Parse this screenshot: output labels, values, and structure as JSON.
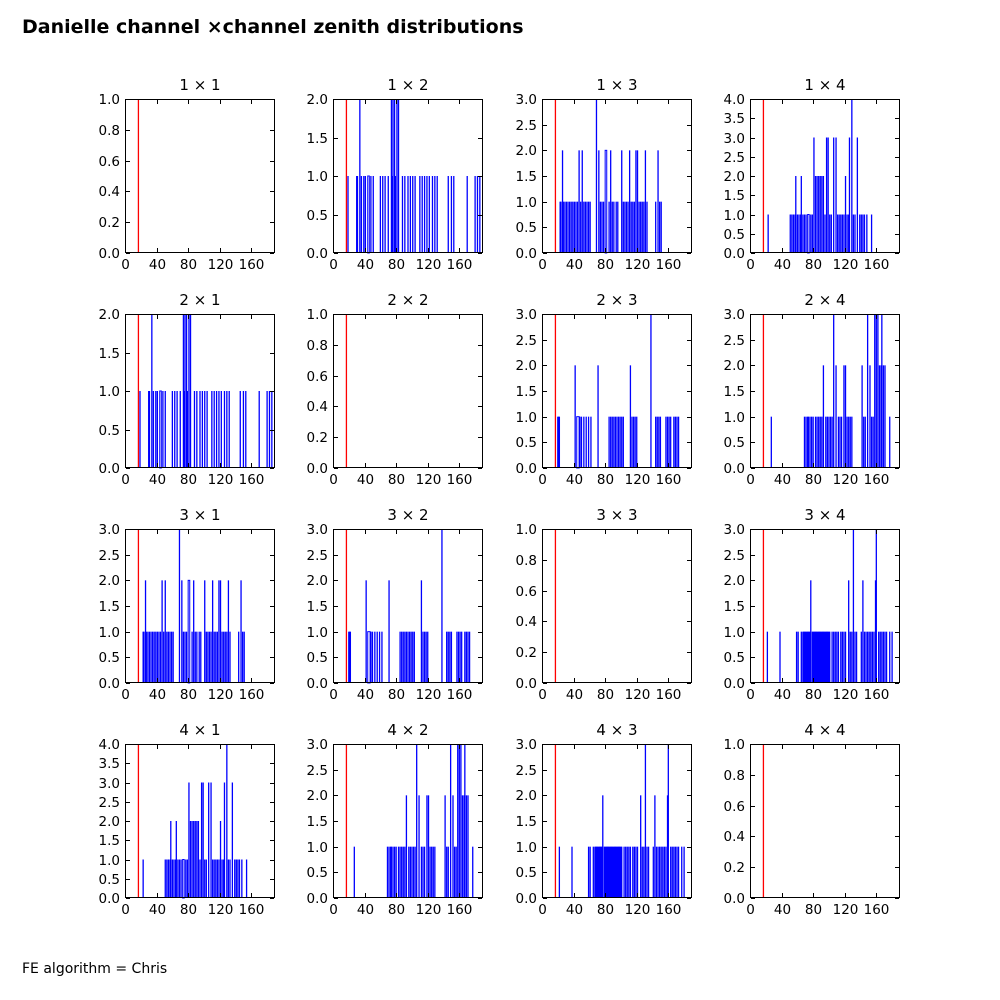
{
  "title": "Danielle channel ×channel zenith distributions",
  "footer": "FE algorithm = Chris",
  "colors": {
    "histogram": "#0000ff",
    "threshold_line": "#ff0000",
    "axis": "#000000",
    "background": "#ffffff",
    "text": "#000000"
  },
  "chart_data": {
    "type": "bar",
    "layout": "4x4-grid",
    "grid": false,
    "legend": false,
    "xlim": [
      0,
      190
    ],
    "xticks": [
      0,
      40,
      80,
      120,
      160
    ],
    "red_line_x": 17,
    "histograms": {
      "empty": [],
      "h12": [
        [
          19,
          1
        ],
        [
          30,
          1
        ],
        [
          31,
          1
        ],
        [
          34,
          2
        ],
        [
          36,
          1
        ],
        [
          39,
          1
        ],
        [
          41,
          1
        ],
        [
          44,
          1,
          2
        ],
        [
          48,
          1
        ],
        [
          51,
          1
        ],
        [
          60,
          1
        ],
        [
          63,
          1
        ],
        [
          66,
          1
        ],
        [
          70,
          1
        ],
        [
          74,
          2
        ],
        [
          75,
          1
        ],
        [
          76,
          2
        ],
        [
          78,
          2
        ],
        [
          79,
          1
        ],
        [
          81,
          2
        ],
        [
          83,
          2
        ],
        [
          88,
          1
        ],
        [
          91,
          1
        ],
        [
          95,
          1
        ],
        [
          98,
          1
        ],
        [
          101,
          1
        ],
        [
          104,
          1
        ],
        [
          110,
          1
        ],
        [
          113,
          1
        ],
        [
          116,
          1
        ],
        [
          119,
          1
        ],
        [
          122,
          1
        ],
        [
          126,
          1
        ],
        [
          129,
          1
        ],
        [
          132,
          1
        ],
        [
          146,
          1
        ],
        [
          150,
          1
        ],
        [
          153,
          1
        ],
        [
          170,
          1
        ],
        [
          180,
          1
        ],
        [
          183,
          1
        ],
        [
          186,
          1
        ]
      ],
      "h13": [
        [
          23,
          1
        ],
        [
          24,
          1
        ],
        [
          26,
          2
        ],
        [
          27,
          1
        ],
        [
          29,
          1
        ],
        [
          31,
          1
        ],
        [
          33,
          1
        ],
        [
          35,
          1
        ],
        [
          37,
          1
        ],
        [
          39,
          1
        ],
        [
          41,
          1
        ],
        [
          43,
          1
        ],
        [
          45,
          1
        ],
        [
          47,
          2
        ],
        [
          49,
          1
        ],
        [
          51,
          2
        ],
        [
          53,
          1
        ],
        [
          55,
          1
        ],
        [
          57,
          1
        ],
        [
          59,
          1
        ],
        [
          61,
          1
        ],
        [
          69,
          3
        ],
        [
          72,
          2
        ],
        [
          74,
          1
        ],
        [
          76,
          1
        ],
        [
          78,
          1
        ],
        [
          80,
          2,
          2
        ],
        [
          85,
          1
        ],
        [
          87,
          2
        ],
        [
          89,
          1
        ],
        [
          91,
          1
        ],
        [
          94,
          1
        ],
        [
          96,
          1
        ],
        [
          101,
          2
        ],
        [
          103,
          1
        ],
        [
          105,
          1
        ],
        [
          107,
          1
        ],
        [
          109,
          1
        ],
        [
          111,
          2
        ],
        [
          113,
          1
        ],
        [
          115,
          1
        ],
        [
          117,
          1
        ],
        [
          119,
          2
        ],
        [
          121,
          2
        ],
        [
          123,
          1
        ],
        [
          125,
          1
        ],
        [
          127,
          1
        ],
        [
          129,
          1
        ],
        [
          131,
          2
        ],
        [
          133,
          1
        ],
        [
          144,
          1
        ],
        [
          147,
          2
        ],
        [
          149,
          1
        ],
        [
          151,
          1
        ]
      ],
      "h14": [
        [
          23,
          1
        ],
        [
          51,
          1
        ],
        [
          53,
          1
        ],
        [
          55,
          1
        ],
        [
          57,
          1
        ],
        [
          58,
          2
        ],
        [
          60,
          1
        ],
        [
          62,
          1
        ],
        [
          64,
          1
        ],
        [
          65,
          2
        ],
        [
          67,
          1
        ],
        [
          69,
          1
        ],
        [
          71,
          1
        ],
        [
          73,
          1,
          2
        ],
        [
          77,
          1
        ],
        [
          79,
          1
        ],
        [
          81,
          3
        ],
        [
          83,
          2
        ],
        [
          85,
          2
        ],
        [
          87,
          2
        ],
        [
          89,
          2
        ],
        [
          91,
          2
        ],
        [
          93,
          2
        ],
        [
          95,
          1
        ],
        [
          97,
          3
        ],
        [
          99,
          3
        ],
        [
          101,
          1
        ],
        [
          103,
          1
        ],
        [
          106,
          3
        ],
        [
          109,
          3
        ],
        [
          111,
          1
        ],
        [
          113,
          1
        ],
        [
          115,
          1
        ],
        [
          117,
          1
        ],
        [
          119,
          1
        ],
        [
          121,
          2
        ],
        [
          123,
          1
        ],
        [
          125,
          1
        ],
        [
          126,
          3
        ],
        [
          129,
          4
        ],
        [
          131,
          1
        ],
        [
          133,
          1
        ],
        [
          136,
          3
        ],
        [
          139,
          1
        ],
        [
          141,
          1
        ],
        [
          143,
          1
        ],
        [
          145,
          1
        ],
        [
          148,
          1
        ],
        [
          154,
          1
        ]
      ],
      "h23": [
        [
          20,
          1
        ],
        [
          21,
          1
        ],
        [
          22,
          1
        ],
        [
          42,
          2
        ],
        [
          44,
          1,
          3
        ],
        [
          48,
          1
        ],
        [
          50,
          1
        ],
        [
          53,
          1
        ],
        [
          56,
          1
        ],
        [
          59,
          1
        ],
        [
          62,
          1
        ],
        [
          71,
          2
        ],
        [
          85,
          1
        ],
        [
          87,
          1
        ],
        [
          89,
          1
        ],
        [
          91,
          1
        ],
        [
          93,
          1
        ],
        [
          95,
          1
        ],
        [
          97,
          1
        ],
        [
          99,
          1
        ],
        [
          101,
          1
        ],
        [
          103,
          1
        ],
        [
          112,
          2
        ],
        [
          114,
          1
        ],
        [
          116,
          1
        ],
        [
          118,
          1
        ],
        [
          120,
          1
        ],
        [
          138,
          3
        ],
        [
          144,
          1
        ],
        [
          146,
          1
        ],
        [
          148,
          1
        ],
        [
          150,
          1
        ],
        [
          157,
          1
        ],
        [
          159,
          1
        ],
        [
          161,
          1
        ],
        [
          163,
          1
        ],
        [
          167,
          1
        ],
        [
          169,
          1
        ],
        [
          171,
          1
        ],
        [
          173,
          1
        ]
      ],
      "h24": [
        [
          27,
          1
        ],
        [
          69,
          1
        ],
        [
          71,
          1
        ],
        [
          73,
          1
        ],
        [
          74,
          1
        ],
        [
          76,
          1
        ],
        [
          78,
          1
        ],
        [
          80,
          1
        ],
        [
          83,
          1
        ],
        [
          85,
          1
        ],
        [
          87,
          1
        ],
        [
          89,
          1
        ],
        [
          91,
          1
        ],
        [
          93,
          2
        ],
        [
          96,
          1
        ],
        [
          98,
          1
        ],
        [
          100,
          1
        ],
        [
          102,
          1
        ],
        [
          104,
          1
        ],
        [
          106,
          3
        ],
        [
          109,
          2
        ],
        [
          112,
          1
        ],
        [
          114,
          1
        ],
        [
          116,
          1
        ],
        [
          119,
          2
        ],
        [
          121,
          2
        ],
        [
          123,
          1
        ],
        [
          125,
          1
        ],
        [
          127,
          1
        ],
        [
          129,
          1
        ],
        [
          142,
          2
        ],
        [
          144,
          1
        ],
        [
          146,
          1
        ],
        [
          149,
          3
        ],
        [
          152,
          2
        ],
        [
          154,
          1
        ],
        [
          156,
          1
        ],
        [
          158,
          3
        ],
        [
          160,
          3
        ],
        [
          162,
          3
        ],
        [
          164,
          2
        ],
        [
          166,
          2
        ],
        [
          167,
          3
        ],
        [
          169,
          2
        ],
        [
          171,
          2
        ],
        [
          177,
          1
        ]
      ],
      "h34": [
        [
          22,
          1
        ],
        [
          38,
          1
        ],
        [
          59,
          1
        ],
        [
          61,
          1
        ],
        [
          65,
          1
        ],
        [
          67,
          1
        ],
        [
          68,
          1
        ],
        [
          69,
          1
        ],
        [
          70,
          1
        ],
        [
          71,
          1
        ],
        [
          72,
          1
        ],
        [
          73,
          1
        ],
        [
          74,
          1
        ],
        [
          75,
          1
        ],
        [
          76,
          1
        ],
        [
          77,
          2
        ],
        [
          79,
          1
        ],
        [
          80,
          1
        ],
        [
          81,
          1
        ],
        [
          82,
          1
        ],
        [
          83,
          1
        ],
        [
          84,
          1
        ],
        [
          85,
          1
        ],
        [
          86,
          1
        ],
        [
          87,
          1
        ],
        [
          88,
          1
        ],
        [
          89,
          1
        ],
        [
          90,
          1
        ],
        [
          91,
          1
        ],
        [
          92,
          1
        ],
        [
          93,
          1
        ],
        [
          94,
          1
        ],
        [
          95,
          1
        ],
        [
          96,
          1
        ],
        [
          97,
          1
        ],
        [
          98,
          1
        ],
        [
          99,
          1
        ],
        [
          100,
          1
        ],
        [
          101,
          1
        ],
        [
          104,
          1
        ],
        [
          106,
          1
        ],
        [
          108,
          1
        ],
        [
          110,
          1
        ],
        [
          112,
          1
        ],
        [
          115,
          1
        ],
        [
          117,
          1
        ],
        [
          119,
          1
        ],
        [
          121,
          1
        ],
        [
          125,
          2
        ],
        [
          127,
          1
        ],
        [
          129,
          1
        ],
        [
          131,
          3
        ],
        [
          133,
          1
        ],
        [
          135,
          1
        ],
        [
          141,
          1
        ],
        [
          143,
          2
        ],
        [
          145,
          1
        ],
        [
          147,
          1
        ],
        [
          149,
          1
        ],
        [
          151,
          1
        ],
        [
          153,
          1
        ],
        [
          155,
          1
        ],
        [
          157,
          1
        ],
        [
          159,
          2
        ],
        [
          160,
          3
        ],
        [
          163,
          1
        ],
        [
          165,
          1
        ],
        [
          167,
          1
        ],
        [
          169,
          1
        ],
        [
          171,
          1
        ],
        [
          173,
          1
        ],
        [
          177,
          1
        ],
        [
          180,
          1
        ]
      ]
    },
    "subplots": [
      {
        "row": 1,
        "col": 1,
        "title": "1 × 1",
        "ylim": [
          0,
          1
        ],
        "yticks": [
          0,
          0.2,
          0.4,
          0.6,
          0.8,
          1
        ],
        "data": "empty"
      },
      {
        "row": 1,
        "col": 2,
        "title": "1 × 2",
        "ylim": [
          0,
          2
        ],
        "yticks": [
          0,
          0.5,
          1,
          1.5,
          2
        ],
        "data": "h12"
      },
      {
        "row": 1,
        "col": 3,
        "title": "1 × 3",
        "ylim": [
          0,
          3
        ],
        "yticks": [
          0,
          0.5,
          1,
          1.5,
          2,
          2.5,
          3
        ],
        "data": "h13"
      },
      {
        "row": 1,
        "col": 4,
        "title": "1 × 4",
        "ylim": [
          0,
          4
        ],
        "yticks": [
          0,
          0.5,
          1,
          1.5,
          2,
          2.5,
          3,
          3.5,
          4
        ],
        "data": "h14"
      },
      {
        "row": 2,
        "col": 1,
        "title": "2 × 1",
        "ylim": [
          0,
          2
        ],
        "yticks": [
          0,
          0.5,
          1,
          1.5,
          2
        ],
        "data": "h12"
      },
      {
        "row": 2,
        "col": 2,
        "title": "2 × 2",
        "ylim": [
          0,
          1
        ],
        "yticks": [
          0,
          0.2,
          0.4,
          0.6,
          0.8,
          1
        ],
        "data": "empty"
      },
      {
        "row": 2,
        "col": 3,
        "title": "2 × 3",
        "ylim": [
          0,
          3
        ],
        "yticks": [
          0,
          0.5,
          1,
          1.5,
          2,
          2.5,
          3
        ],
        "data": "h23"
      },
      {
        "row": 2,
        "col": 4,
        "title": "2 × 4",
        "ylim": [
          0,
          3
        ],
        "yticks": [
          0,
          0.5,
          1,
          1.5,
          2,
          2.5,
          3
        ],
        "data": "h24"
      },
      {
        "row": 3,
        "col": 1,
        "title": "3 × 1",
        "ylim": [
          0,
          3
        ],
        "yticks": [
          0,
          0.5,
          1,
          1.5,
          2,
          2.5,
          3
        ],
        "data": "h13"
      },
      {
        "row": 3,
        "col": 2,
        "title": "3 × 2",
        "ylim": [
          0,
          3
        ],
        "yticks": [
          0,
          0.5,
          1,
          1.5,
          2,
          2.5,
          3
        ],
        "data": "h23"
      },
      {
        "row": 3,
        "col": 3,
        "title": "3 × 3",
        "ylim": [
          0,
          1
        ],
        "yticks": [
          0,
          0.2,
          0.4,
          0.6,
          0.8,
          1
        ],
        "data": "empty"
      },
      {
        "row": 3,
        "col": 4,
        "title": "3 × 4",
        "ylim": [
          0,
          3
        ],
        "yticks": [
          0,
          0.5,
          1,
          1.5,
          2,
          2.5,
          3
        ],
        "data": "h34"
      },
      {
        "row": 4,
        "col": 1,
        "title": "4 × 1",
        "ylim": [
          0,
          4
        ],
        "yticks": [
          0,
          0.5,
          1,
          1.5,
          2,
          2.5,
          3,
          3.5,
          4
        ],
        "data": "h14"
      },
      {
        "row": 4,
        "col": 2,
        "title": "4 × 2",
        "ylim": [
          0,
          3
        ],
        "yticks": [
          0,
          0.5,
          1,
          1.5,
          2,
          2.5,
          3
        ],
        "data": "h24"
      },
      {
        "row": 4,
        "col": 3,
        "title": "4 × 3",
        "ylim": [
          0,
          3
        ],
        "yticks": [
          0,
          0.5,
          1,
          1.5,
          2,
          2.5,
          3
        ],
        "data": "h34"
      },
      {
        "row": 4,
        "col": 4,
        "title": "4 × 4",
        "ylim": [
          0,
          1
        ],
        "yticks": [
          0,
          0.2,
          0.4,
          0.6,
          0.8,
          1
        ],
        "data": "empty"
      }
    ]
  }
}
